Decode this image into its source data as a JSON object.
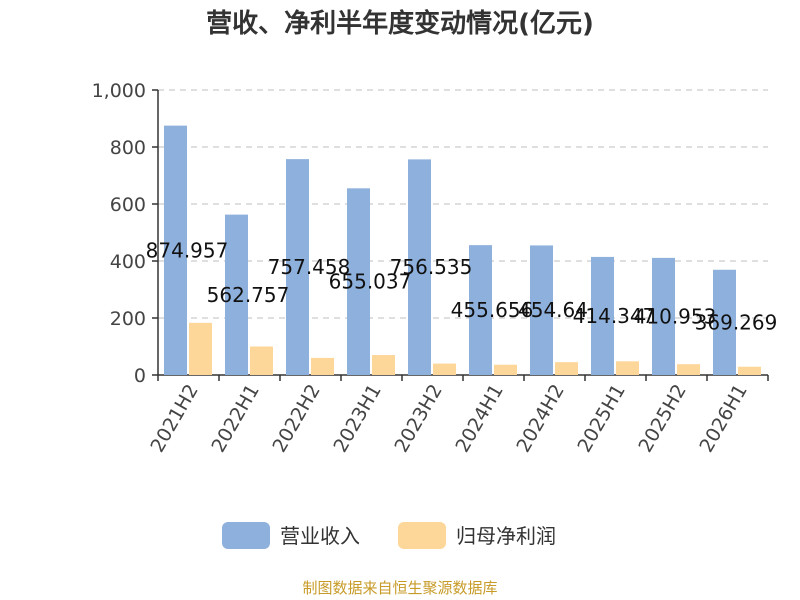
{
  "chart_data": {
    "type": "bar",
    "title": "营收、净利半年度变动情况(亿元)",
    "categories": [
      "2021H2",
      "2022H1",
      "2022H2",
      "2023H1",
      "2023H2",
      "2024H1",
      "2024H2",
      "2025H1",
      "2025H2",
      "2026H1"
    ],
    "series": [
      {
        "name": "营业收入",
        "color": "#8eb0dc",
        "values": [
          874.957,
          562.757,
          757.458,
          655.037,
          756.535,
          455.656,
          454.64,
          414.347,
          410.953,
          369.269
        ],
        "labels": [
          "874.957",
          "562.757",
          "757.458",
          "655.037",
          "756.535",
          "455.656",
          "454.64",
          "414.347",
          "410.953",
          "369.269"
        ]
      },
      {
        "name": "归母净利润",
        "color": "#fdd699",
        "values": [
          183,
          100,
          60,
          70,
          40,
          36,
          45,
          48,
          38,
          29
        ]
      }
    ],
    "yticks": [
      "0",
      "200",
      "400",
      "600",
      "800",
      "1,000"
    ],
    "ylim": [
      0,
      1000
    ],
    "grid": true,
    "legend": "bottom"
  },
  "footer": {
    "source": "制图数据来自恒生聚源数据库"
  }
}
